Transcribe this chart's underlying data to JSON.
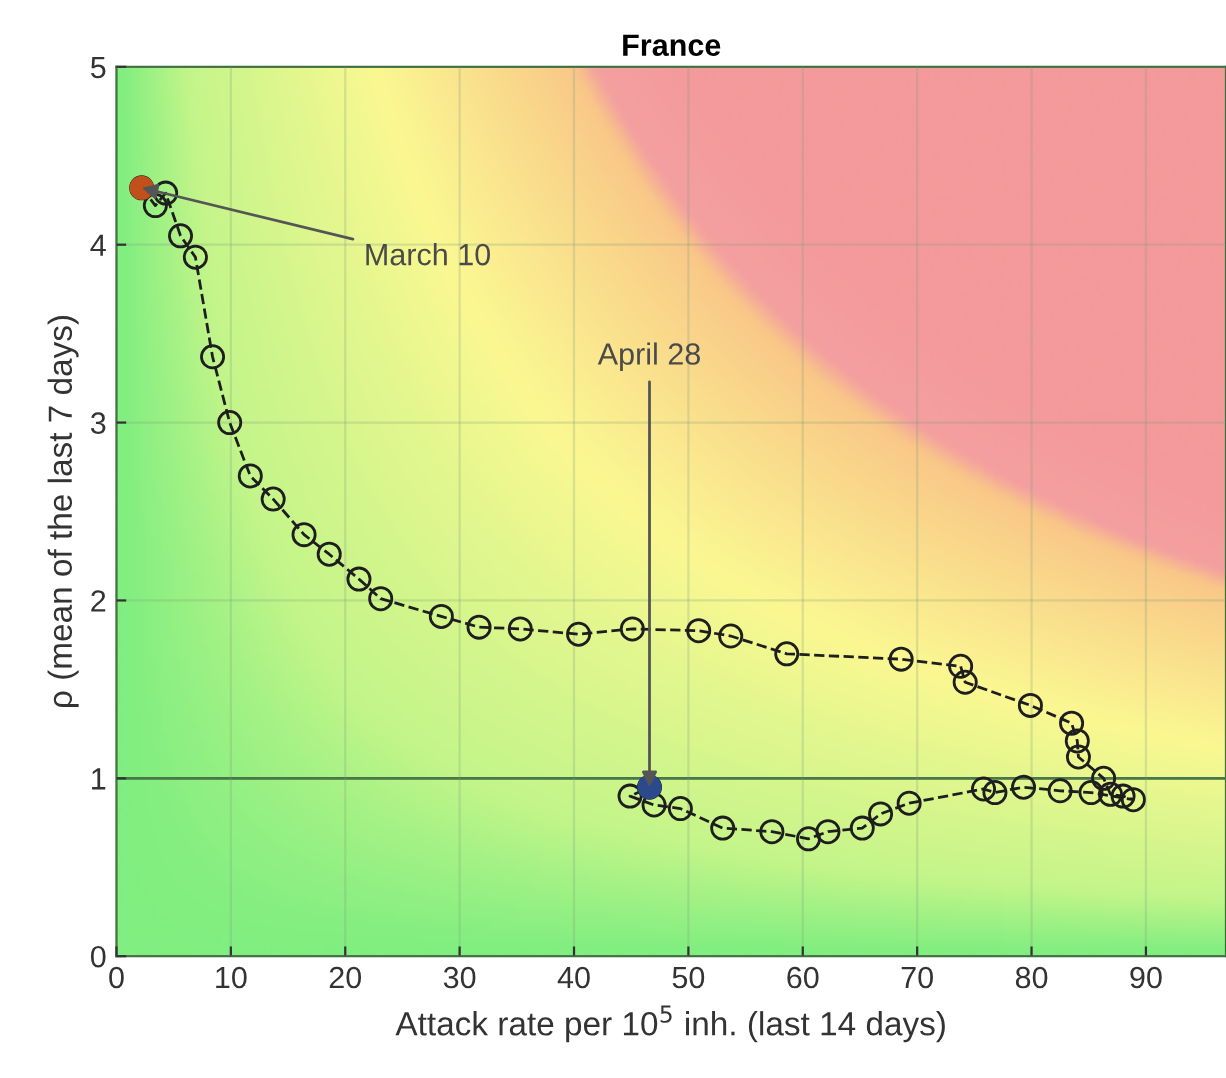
{
  "chart_data": {
    "type": "line",
    "title": "France",
    "xlabel": "Attack rate per 10$^{5}$ inh. (last 14 days)",
    "ylabel": "ρ (mean of the last 7 days)",
    "xlim": [
      0,
      97
    ],
    "ylim": [
      0,
      5
    ],
    "xticks": [
      0,
      10,
      20,
      30,
      40,
      50,
      60,
      70,
      80,
      90
    ],
    "yticks": [
      0,
      1,
      2,
      3,
      4,
      5
    ],
    "grid": true,
    "legend": false,
    "series": [
      {
        "color": "#1e1e1e",
        "marker": "circle",
        "line_style": "dashed",
        "x": [
          2.2,
          3.4,
          4.3,
          5.6,
          6.9,
          8.4,
          9.9,
          11.7,
          13.7,
          16.4,
          18.6,
          21.2,
          23.1,
          28.4,
          31.7,
          35.3,
          40.4,
          45.1,
          50.9,
          53.7,
          58.6,
          68.6,
          73.8,
          74.2,
          79.9,
          83.5,
          84.0,
          84.1,
          86.3,
          86.9,
          88.0,
          88.9,
          85.2,
          82.5,
          79.3,
          76.8,
          75.8,
          69.3,
          66.8,
          65.2,
          62.2,
          60.5,
          57.3,
          53.0,
          49.3,
          47.0,
          44.9,
          46.6
        ],
        "values": [
          4.32,
          4.22,
          4.29,
          4.05,
          3.93,
          3.37,
          3.0,
          2.7,
          2.57,
          2.37,
          2.26,
          2.12,
          2.01,
          1.91,
          1.85,
          1.84,
          1.81,
          1.84,
          1.83,
          1.8,
          1.7,
          1.67,
          1.63,
          1.54,
          1.41,
          1.31,
          1.21,
          1.12,
          1.0,
          0.91,
          0.9,
          0.88,
          0.92,
          0.93,
          0.95,
          0.92,
          0.94,
          0.86,
          0.8,
          0.72,
          0.7,
          0.66,
          0.7,
          0.72,
          0.83,
          0.85,
          0.9,
          0.95
        ]
      },
      {
        "type": "scatter",
        "color": "#c0501c",
        "x": [
          2.2
        ],
        "values": [
          4.32
        ]
      },
      {
        "type": "scatter",
        "color": "#2b4a8c",
        "x": [
          46.6
        ],
        "values": [
          0.95
        ]
      }
    ],
    "ref_lines": [
      {
        "axis": "y",
        "value": 1,
        "color": "#3c6e3c",
        "line_style": "solid"
      }
    ],
    "annotations": [
      {
        "text": "March 10",
        "x": 2.2,
        "y": 4.32
      },
      {
        "text": "April 28",
        "x": 46.6,
        "y": 0.95
      }
    ]
  }
}
